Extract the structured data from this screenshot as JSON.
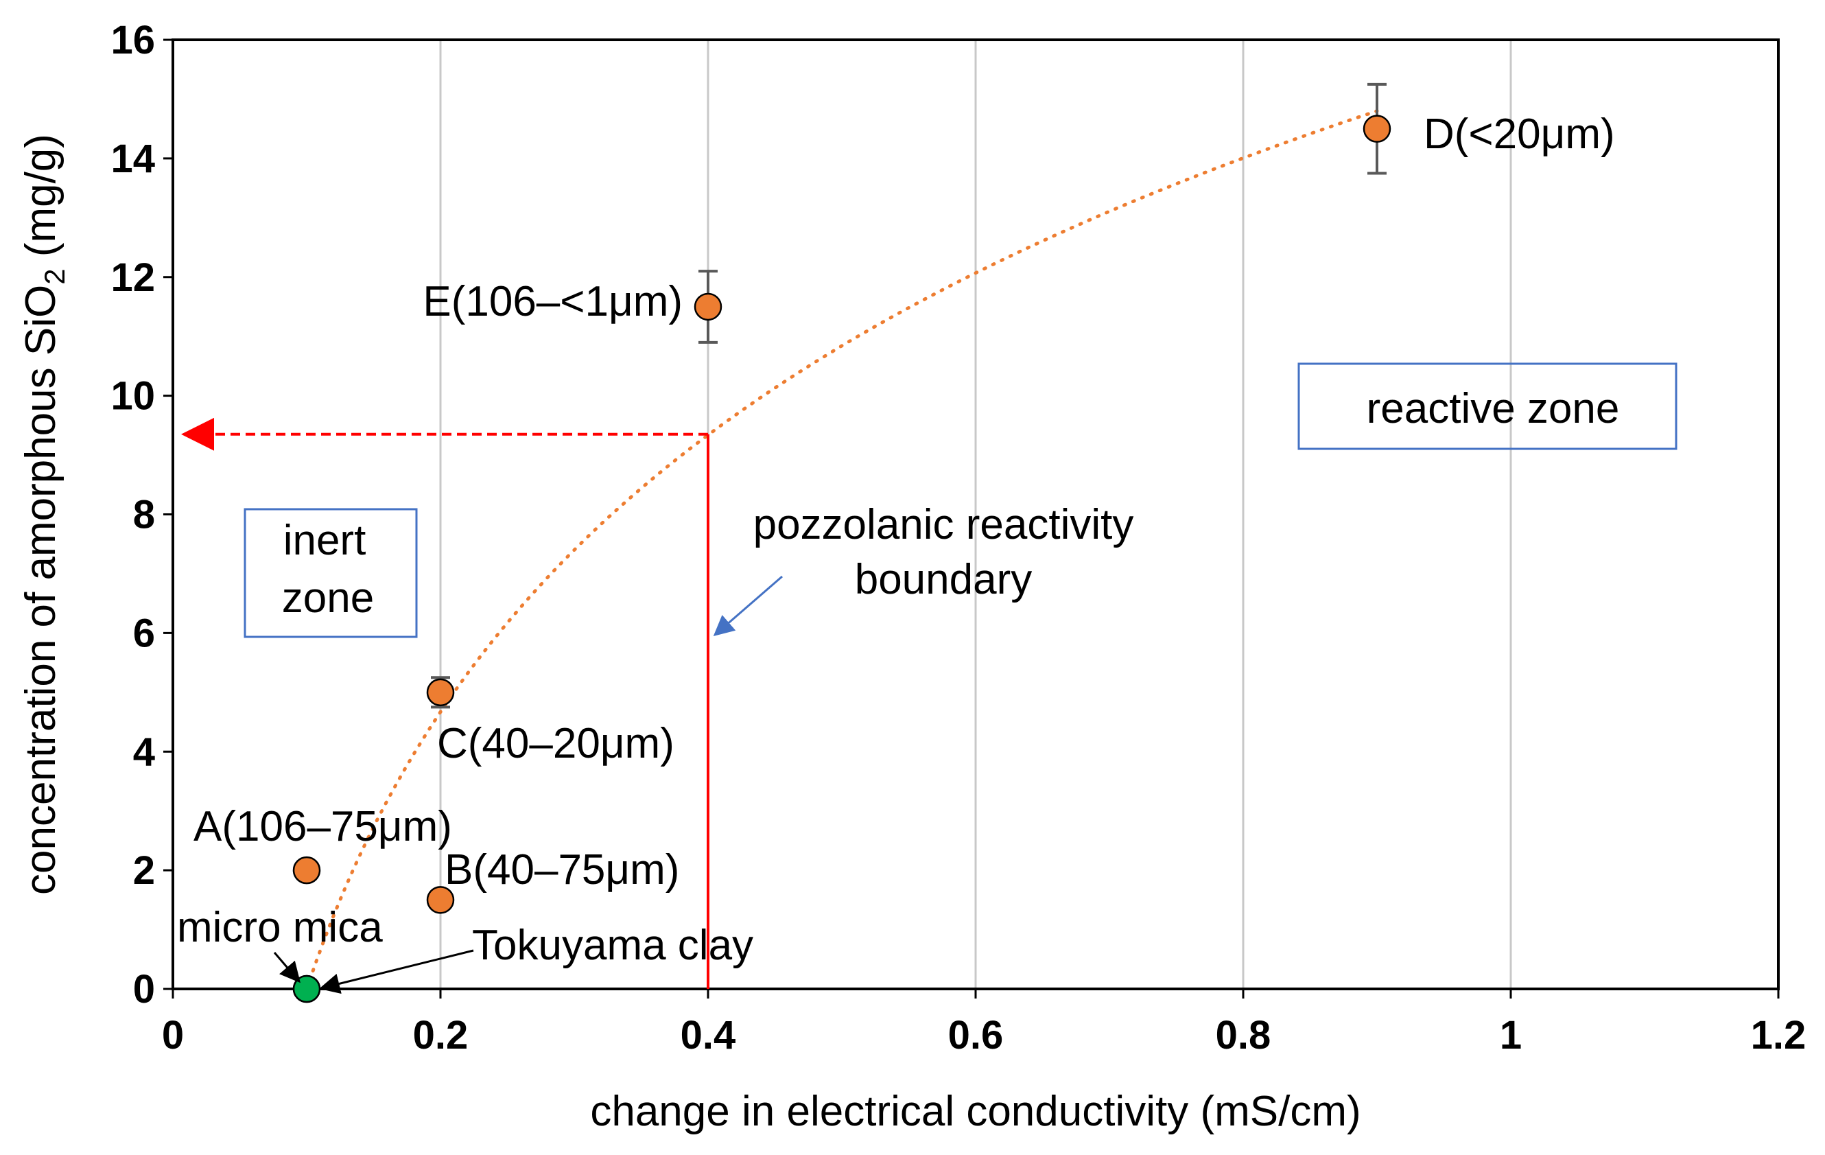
{
  "chart_data": {
    "type": "scatter",
    "title": "",
    "xlabel": "change in electrical conductivity (mS/cm)",
    "ylabel_main": "concentration of amorphous SiO",
    "ylabel_sub": "2",
    "ylabel_unit": " (mg/g)",
    "xlim": [
      0,
      1.2
    ],
    "ylim": [
      0,
      16
    ],
    "x_ticks": [
      0,
      0.2,
      0.4,
      0.6,
      0.8,
      1,
      1.2
    ],
    "x_tick_labels": [
      "0",
      "0.2",
      "0.4",
      "0.6",
      "0.8",
      "1",
      "1.2"
    ],
    "y_ticks": [
      0,
      2,
      4,
      6,
      8,
      10,
      12,
      14,
      16
    ],
    "y_tick_labels": [
      "0",
      "2",
      "4",
      "6",
      "8",
      "10",
      "12",
      "14",
      "16"
    ],
    "grid": "vertical",
    "points": [
      {
        "id": "A",
        "label": "A(106–75μm)",
        "x": 0.1,
        "y": 2.0,
        "color": "#ED7D31"
      },
      {
        "id": "B",
        "label": "B(40–75μm)",
        "x": 0.2,
        "y": 1.5,
        "color": "#ED7D31"
      },
      {
        "id": "C",
        "label": "C(40–20μm)",
        "x": 0.2,
        "y": 5.0,
        "error": 0.25,
        "color": "#ED7D31"
      },
      {
        "id": "D",
        "label": "D(<20μm)",
        "x": 0.9,
        "y": 14.5,
        "error": 0.75,
        "color": "#ED7D31"
      },
      {
        "id": "E",
        "label": "E(106–<1μm)",
        "x": 0.4,
        "y": 11.5,
        "error": 0.6,
        "color": "#ED7D31"
      },
      {
        "id": "mica",
        "label": "micro mica",
        "x": 0.1,
        "y": 0.0,
        "color": "#00B050"
      },
      {
        "id": "clay",
        "label": "Tokuyama clay",
        "x": 0.1,
        "y": 0.0,
        "color": "#00B050"
      }
    ],
    "trendline": {
      "type": "logarithmic",
      "x_from": 0.1,
      "x_to": 0.9,
      "y_from": 0.0,
      "y_to": 14.8,
      "color": "#ED7D31"
    },
    "boundary": {
      "x": 0.4,
      "y_intersect": 9.35,
      "color": "#FF0000",
      "label_line1": "pozzolanic reactivity",
      "label_line2": "boundary"
    },
    "zones": {
      "inert_line1": "inert",
      "inert_line2": "zone",
      "reactive": "reactive zone",
      "box_color": "#4472C4"
    }
  }
}
